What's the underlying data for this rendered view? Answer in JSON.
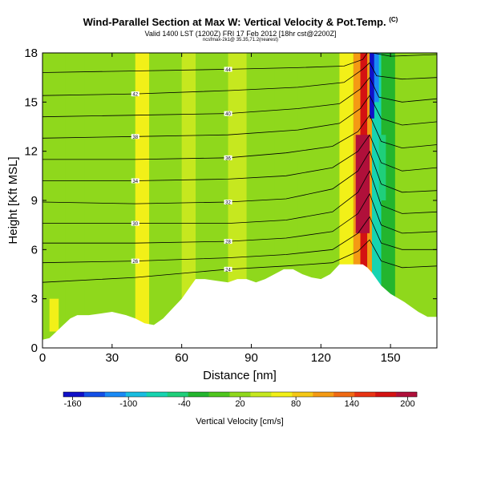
{
  "header": {
    "title": "Wind-Parallel Section at Max W: Vertical Velocity & Pot.Temp.",
    "copyright_mark": "(C)",
    "valid_line": "Valid 1400 LST (1200Z) FRI 17 Feb 2012 [18hr cst@2200Z]",
    "sub_line": "ncsfmax-2k1@ 35.35,71.2(nearest)"
  },
  "chart_data": {
    "type": "heatmap",
    "title": "Wind-Parallel Section at Max W: Vertical Velocity & Pot.Temp.",
    "xlabel": "Distance [nm]",
    "ylabel": "Height [Kft MSL]",
    "xlim": [
      0,
      170
    ],
    "ylim": [
      0,
      18
    ],
    "x_ticks": [
      0,
      30,
      60,
      90,
      120,
      150
    ],
    "y_ticks": [
      0,
      3,
      6,
      9,
      12,
      15,
      18
    ],
    "colorbar": {
      "label": "Vertical Velocity [cm/s]",
      "tick_values": [
        -160,
        -100,
        -40,
        20,
        80,
        140,
        200
      ],
      "tick_labels": [
        "-160",
        "-100",
        "-40",
        "20",
        "80",
        "140",
        "200"
      ],
      "colors": [
        "#1010c8",
        "#1450e6",
        "#1a8af5",
        "#19bde0",
        "#17d4b0",
        "#1fcf7a",
        "#23b52e",
        "#4fc61e",
        "#8fd81c",
        "#c6e81f",
        "#f2f018",
        "#f5c816",
        "#f49a14",
        "#f06a14",
        "#e83414",
        "#d41212",
        "#b0103a"
      ],
      "range": [
        -170,
        210
      ]
    },
    "velocity_columns": [
      {
        "x": [
          0,
          10
        ],
        "w": 30
      },
      {
        "x": [
          10,
          18
        ],
        "w": 10
      },
      {
        "x": [
          18,
          40
        ],
        "w": 25
      },
      {
        "x": [
          40,
          46
        ],
        "w": 55
      },
      {
        "x": [
          46,
          60
        ],
        "w": 22
      },
      {
        "x": [
          60,
          66
        ],
        "w": 45
      },
      {
        "x": [
          66,
          80
        ],
        "w": 12
      },
      {
        "x": [
          80,
          88
        ],
        "w": 35
      },
      {
        "x": [
          88,
          100
        ],
        "w": 10
      },
      {
        "x": [
          100,
          110
        ],
        "w": 28
      },
      {
        "x": [
          110,
          128
        ],
        "w": 15
      },
      {
        "x": [
          128,
          134
        ],
        "w": 60
      },
      {
        "x": [
          134,
          137
        ],
        "w": 120
      },
      {
        "x": [
          137,
          140
        ],
        "w": 180
      },
      {
        "x": [
          140,
          142
        ],
        "w": 100
      },
      {
        "x": [
          142,
          146
        ],
        "w": -60
      },
      {
        "x": [
          146,
          152
        ],
        "w": -20
      },
      {
        "x": [
          152,
          170
        ],
        "w": 25
      }
    ],
    "velocity_cells": [
      {
        "x": [
          135,
          141
        ],
        "y": [
          7,
          13
        ],
        "w": 200
      },
      {
        "x": [
          141,
          143
        ],
        "y": [
          14,
          18
        ],
        "w": -150
      },
      {
        "x": [
          143,
          145
        ],
        "y": [
          15,
          18
        ],
        "w": -110
      },
      {
        "x": [
          145,
          148
        ],
        "y": [
          9,
          13
        ],
        "w": -40
      },
      {
        "x": [
          3,
          7
        ],
        "y": [
          1,
          3
        ],
        "w": 60
      }
    ],
    "isentrope_labels": [
      "44",
      "42",
      "40",
      "38",
      "36",
      "34",
      "32",
      "30",
      "28",
      "26",
      "24"
    ],
    "isentropes": [
      {
        "label": "44",
        "x": [
          0,
          40,
          80,
          110,
          130,
          138,
          140,
          142,
          150,
          170
        ],
        "y": [
          16.8,
          16.9,
          17.0,
          17.1,
          17.2,
          17.6,
          18,
          18,
          17.8,
          17.9
        ]
      },
      {
        "label": "42",
        "x": [
          0,
          40,
          80,
          110,
          130,
          138,
          141,
          144,
          155,
          170
        ],
        "y": [
          15.4,
          15.5,
          15.7,
          15.9,
          16.2,
          17.0,
          17.4,
          16.6,
          16.4,
          16.5
        ]
      },
      {
        "label": "40",
        "x": [
          0,
          40,
          80,
          110,
          128,
          137,
          141,
          145,
          155,
          170
        ],
        "y": [
          14.1,
          14.2,
          14.3,
          14.6,
          14.9,
          15.8,
          16.5,
          15.3,
          15.0,
          15.2
        ]
      },
      {
        "label": "38",
        "x": [
          0,
          40,
          80,
          110,
          128,
          137,
          141,
          146,
          155,
          170
        ],
        "y": [
          12.8,
          12.9,
          13.0,
          13.3,
          13.7,
          14.6,
          15.4,
          14.0,
          13.6,
          13.8
        ]
      },
      {
        "label": "36",
        "x": [
          0,
          40,
          80,
          105,
          125,
          136,
          141,
          146,
          155,
          170
        ],
        "y": [
          11.5,
          11.5,
          11.6,
          11.9,
          12.3,
          13.2,
          14.2,
          12.6,
          12.2,
          12.4
        ]
      },
      {
        "label": "34",
        "x": [
          0,
          40,
          80,
          105,
          125,
          136,
          141,
          146,
          155,
          170
        ],
        "y": [
          10.2,
          10.2,
          10.3,
          10.5,
          11.0,
          12.0,
          13.0,
          11.3,
          10.8,
          11.0
        ]
      },
      {
        "label": "32",
        "x": [
          0,
          40,
          80,
          105,
          125,
          136,
          141,
          146,
          155,
          170
        ],
        "y": [
          8.9,
          8.8,
          8.9,
          9.1,
          9.7,
          10.8,
          12.0,
          10.0,
          9.5,
          9.6
        ]
      },
      {
        "label": "30",
        "x": [
          0,
          40,
          80,
          105,
          125,
          136,
          141,
          146,
          155,
          170
        ],
        "y": [
          7.6,
          7.6,
          7.6,
          7.8,
          8.3,
          9.5,
          10.8,
          8.7,
          8.2,
          8.3
        ]
      },
      {
        "label": "28",
        "x": [
          0,
          40,
          80,
          105,
          125,
          136,
          141,
          146,
          155,
          170
        ],
        "y": [
          6.4,
          6.4,
          6.5,
          6.7,
          7.1,
          8.2,
          9.4,
          7.5,
          7.0,
          7.1
        ]
      },
      {
        "label": "26",
        "x": [
          0,
          40,
          80,
          105,
          125,
          136,
          141,
          146,
          155,
          170
        ],
        "y": [
          5.2,
          5.3,
          5.5,
          5.7,
          6.0,
          7.0,
          8.0,
          6.4,
          6.0,
          6.0
        ]
      },
      {
        "label": "24",
        "x": [
          0,
          40,
          80,
          105,
          125,
          136,
          141,
          146,
          155,
          170
        ],
        "y": [
          4.0,
          4.3,
          4.8,
          5.0,
          5.2,
          5.9,
          6.6,
          5.3,
          4.9,
          5.0
        ]
      }
    ],
    "terrain": {
      "x": [
        0,
        3,
        6,
        9,
        12,
        15,
        20,
        25,
        30,
        36,
        40,
        44,
        48,
        52,
        56,
        60,
        64,
        66,
        70,
        75,
        80,
        84,
        88,
        92,
        96,
        100,
        104,
        108,
        112,
        116,
        120,
        124,
        126,
        128,
        130,
        132,
        135,
        138,
        140,
        142,
        146,
        150,
        156,
        162,
        166,
        170
      ],
      "y": [
        0.5,
        0.6,
        1.0,
        1.4,
        1.8,
        2.0,
        2.0,
        2.1,
        2.2,
        2.0,
        1.8,
        1.5,
        1.4,
        1.8,
        2.4,
        3.0,
        3.8,
        4.2,
        4.2,
        4.1,
        4.0,
        4.2,
        4.2,
        4.0,
        4.2,
        4.5,
        4.8,
        4.8,
        4.5,
        4.3,
        4.2,
        4.5,
        4.8,
        5.1,
        5.1,
        5.1,
        5.1,
        5.1,
        4.9,
        4.6,
        3.8,
        3.3,
        2.8,
        2.2,
        1.9,
        1.9
      ]
    }
  }
}
